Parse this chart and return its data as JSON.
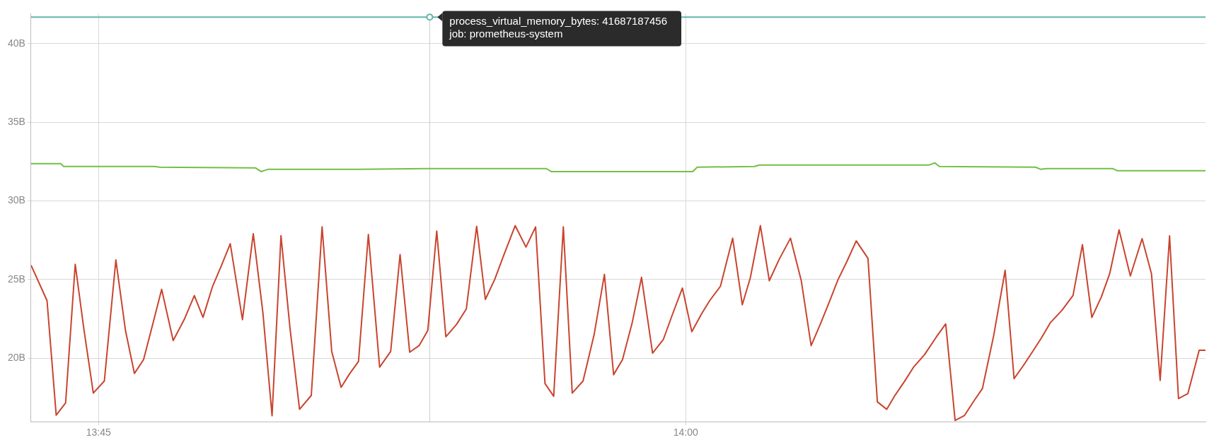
{
  "chart_data": {
    "type": "line",
    "marker": "none",
    "grid": true,
    "legend": false,
    "xlim": [
      13.7213,
      14.2213
    ],
    "xticks": [
      {
        "value": 13.75,
        "label": "13:45"
      },
      {
        "value": 14,
        "label": "14:00"
      }
    ],
    "ylim": [
      15.95,
      41.9
    ],
    "yticks": [
      {
        "value": 20,
        "label": "20B"
      },
      {
        "value": 25,
        "label": "25B"
      },
      {
        "value": 30,
        "label": "30B"
      },
      {
        "value": 35,
        "label": "35B"
      },
      {
        "value": 40,
        "label": "40B"
      }
    ],
    "series": [
      {
        "color": "#64b5ab",
        "x": [
          13.7213,
          14.2213
        ],
        "values": [
          41.687187456,
          41.687187456
        ]
      },
      {
        "color": "#73bf45",
        "x": [
          13.7213,
          13.7339,
          13.7352,
          13.774,
          13.776,
          13.8169,
          13.8192,
          13.8221,
          13.8564,
          13.8893,
          13.9407,
          13.9427,
          14.003,
          14.0049,
          14.0293,
          14.0313,
          14.1034,
          14.1061,
          14.108,
          14.1489,
          14.1512,
          14.1535,
          14.1818,
          14.1838,
          14.2213
        ],
        "values": [
          32.36,
          32.36,
          32.18,
          32.18,
          32.14,
          32.09,
          31.86,
          32.0,
          32.0,
          32.05,
          32.05,
          31.86,
          31.86,
          32.14,
          32.18,
          32.27,
          32.27,
          32.41,
          32.18,
          32.14,
          32.0,
          32.05,
          32.05,
          31.91,
          31.91
        ]
      },
      {
        "color": "#c9442e",
        "x": [
          13.7213,
          13.7281,
          13.732,
          13.736,
          13.7401,
          13.7438,
          13.7478,
          13.7525,
          13.7574,
          13.7615,
          13.7653,
          13.7692,
          13.7733,
          13.7769,
          13.7818,
          13.7866,
          13.7908,
          13.7945,
          13.7986,
          13.8024,
          13.8061,
          13.8113,
          13.8159,
          13.82,
          13.8239,
          13.8277,
          13.8315,
          13.8356,
          13.8406,
          13.8452,
          13.8493,
          13.8533,
          13.857,
          13.8607,
          13.8649,
          13.8697,
          13.8744,
          13.8784,
          13.8825,
          13.8865,
          13.8902,
          13.894,
          13.8979,
          13.9025,
          13.9066,
          13.911,
          13.9147,
          13.9187,
          13.9222,
          13.9274,
          13.932,
          13.9361,
          13.9401,
          13.9438,
          13.9479,
          13.9517,
          13.9563,
          13.961,
          13.9654,
          13.9693,
          13.9731,
          13.9772,
          13.9812,
          13.9859,
          13.9905,
          13.9945,
          13.9986,
          14.0026,
          14.0067,
          14.0102,
          14.0148,
          14.02,
          14.0241,
          14.0275,
          14.0318,
          14.0356,
          14.0397,
          14.0446,
          14.0492,
          14.0534,
          14.0573,
          14.0611,
          14.0648,
          14.0686,
          14.0726,
          14.0776,
          14.0816,
          14.0856,
          14.0892,
          14.093,
          14.097,
          14.1017,
          14.1067,
          14.1107,
          14.1147,
          14.1187,
          14.1225,
          14.1263,
          14.1311,
          14.136,
          14.1398,
          14.1438,
          14.1479,
          14.1514,
          14.1552,
          14.1602,
          14.1649,
          14.1689,
          14.1729,
          14.1769,
          14.1805,
          14.1845,
          14.1893,
          14.1943,
          14.1983,
          14.202,
          14.206,
          14.2098,
          14.2138,
          14.2186,
          14.2213
        ],
        "values": [
          25.9,
          23.65,
          16.37,
          17.14,
          25.96,
          21.83,
          17.77,
          18.54,
          26.24,
          21.75,
          19.02,
          19.9,
          22.27,
          24.37,
          21.11,
          22.48,
          23.97,
          22.59,
          24.57,
          25.9,
          27.27,
          22.44,
          27.91,
          22.88,
          16.33,
          27.78,
          21.95,
          16.74,
          17.62,
          28.34,
          20.42,
          18.14,
          19.02,
          19.78,
          27.86,
          19.42,
          20.42,
          26.58,
          20.37,
          20.79,
          21.75,
          28.07,
          21.35,
          22.15,
          23.12,
          28.38,
          23.73,
          25.0,
          26.41,
          28.42,
          27.06,
          28.34,
          18.38,
          17.57,
          28.34,
          17.77,
          18.54,
          21.48,
          25.32,
          18.94,
          19.9,
          22.23,
          25.13,
          20.31,
          21.19,
          22.83,
          24.45,
          21.67,
          22.8,
          23.65,
          24.57,
          27.62,
          23.39,
          25.1,
          28.42,
          24.92,
          26.25,
          27.62,
          24.92,
          20.79,
          22.15,
          23.55,
          24.97,
          26.13,
          27.45,
          26.34,
          17.21,
          16.74,
          17.65,
          18.48,
          19.42,
          20.22,
          21.34,
          22.17,
          16.03,
          16.35,
          17.23,
          18.05,
          21.41,
          25.58,
          18.69,
          19.53,
          20.46,
          21.27,
          22.24,
          23.04,
          23.98,
          27.21,
          22.58,
          23.87,
          25.36,
          28.15,
          25.22,
          27.59,
          25.36,
          18.58,
          27.77,
          17.42,
          17.74,
          20.49,
          20.49
        ]
      }
    ],
    "ref_lines": [
      {
        "axis": "x",
        "value": 13.891,
        "color": "#cccccc"
      }
    ],
    "annotations": [
      {
        "text": "process_virtual_memory_bytes: 41687187456\njob: prometheus-system",
        "x": 13.891,
        "y": 41.687187456
      }
    ]
  }
}
